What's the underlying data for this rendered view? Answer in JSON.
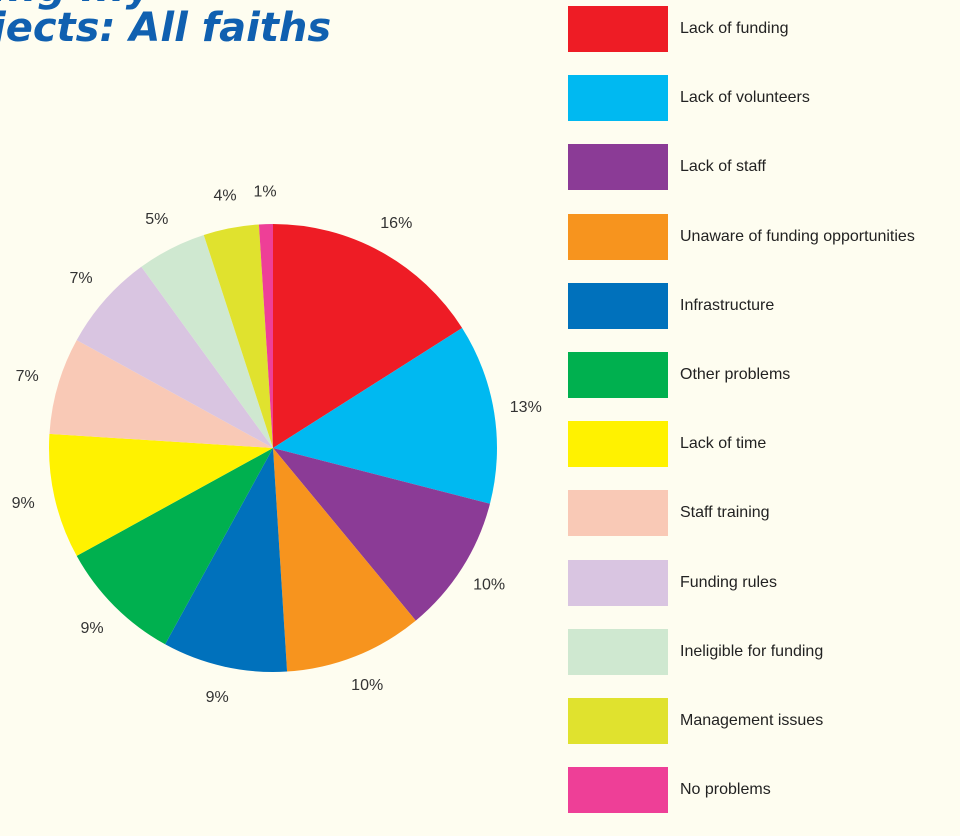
{
  "title_lines": [
    "...g ...y",
    "jects: All faiths"
  ],
  "chart_data": {
    "type": "pie",
    "start_angle_deg": 0,
    "direction": "clockwise",
    "slices": [
      {
        "label": "Lack of funding",
        "value": 16,
        "value_label": "16%",
        "color": "#ee1c25"
      },
      {
        "label": "Lack of volunteers",
        "value": 13,
        "value_label": "13%",
        "color": "#00b9f1"
      },
      {
        "label": "Lack of staff",
        "value": 10,
        "value_label": "10%",
        "color": "#8b3b96"
      },
      {
        "label": "Unaware of funding opportunities",
        "value": 10,
        "value_label": "10%",
        "color": "#f7941e"
      },
      {
        "label": "Infrastructure",
        "value": 9,
        "value_label": "9%",
        "color": "#0071bc"
      },
      {
        "label": "Other problems",
        "value": 9,
        "value_label": "9%",
        "color": "#00b04f"
      },
      {
        "label": "Lack of time",
        "value": 9,
        "value_label": "9%",
        "color": "#fff200"
      },
      {
        "label": "Staff training",
        "value": 7,
        "value_label": "7%",
        "color": "#f9c9b6"
      },
      {
        "label": "Funding rules",
        "value": 7,
        "value_label": "7%",
        "color": "#d9c5e1"
      },
      {
        "label": "Ineligible for funding",
        "value": 5,
        "value_label": "5%",
        "color": "#cfe8d0"
      },
      {
        "label": "Management issues",
        "value": 4,
        "value_label": "4%",
        "color": "#e0e22e"
      },
      {
        "label": "No problems",
        "value": 1,
        "value_label": "1%",
        "color": "#ee3f97"
      }
    ],
    "legend_position": "right"
  }
}
